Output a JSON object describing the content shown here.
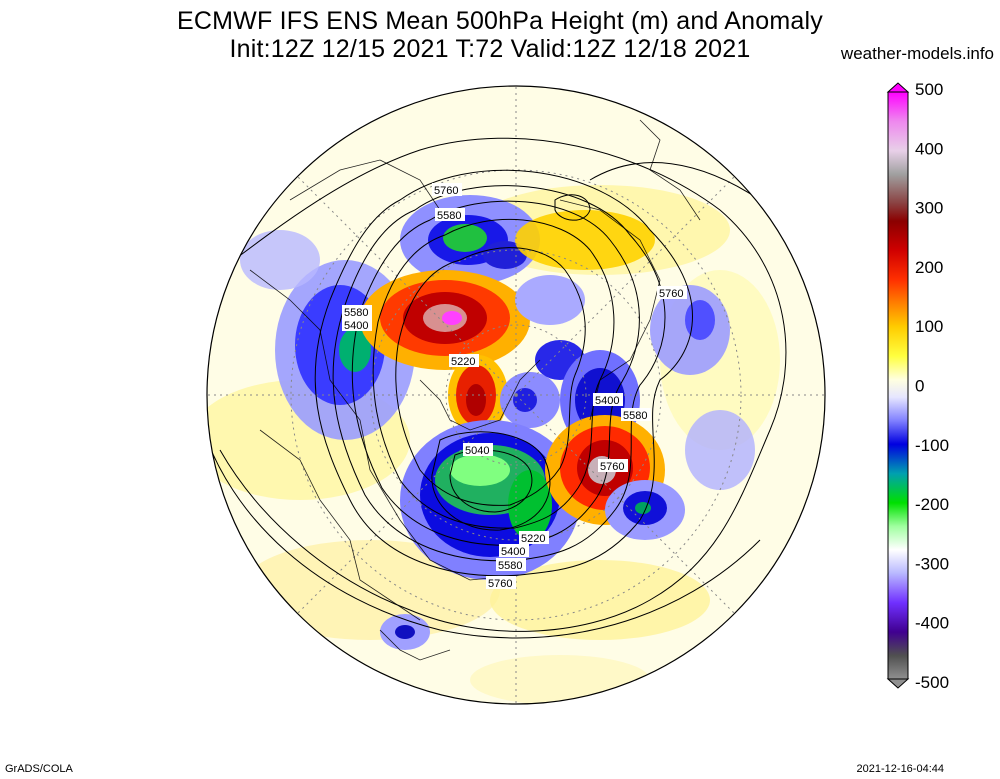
{
  "title": {
    "line1": "ECMWF IFS ENS Mean 500hPa Height (m) and Anomaly",
    "line2": "Init:12Z 12/15 2021  T:72 Valid:12Z 12/18 2021"
  },
  "source": "weather-models.info",
  "footer": {
    "left": "GrADS/COLA",
    "right": "2021-12-16-04:44"
  },
  "colorbar": {
    "labels": [
      "500",
      "400",
      "300",
      "200",
      "100",
      "0",
      "-100",
      "-200",
      "-300",
      "-400",
      "-500"
    ],
    "colors": [
      "#ff00ff",
      "#ee66ee",
      "#e6c8e6",
      "#b4b4b4",
      "#966464",
      "#8b0000",
      "#c80000",
      "#ff2000",
      "#ff7800",
      "#ffb400",
      "#ffff00",
      "#ffffc8",
      "#ffffff",
      "#c8c8ff",
      "#6464ff",
      "#0000e6",
      "#00b4a0",
      "#00e600",
      "#96ff96",
      "#ffffff",
      "#b4b4ff",
      "#6e00ff",
      "#3c0096",
      "#646464"
    ]
  },
  "contour_labels": {
    "l1": "5760",
    "l2": "5580",
    "l3": "5580",
    "l4": "5400",
    "l5": "5220",
    "l6": "5760",
    "l7": "5400",
    "l8": "5580",
    "l9": "5760",
    "l10": "5040",
    "l11": "5220",
    "l12": "5400",
    "l13": "5580",
    "l14": "5760"
  },
  "map": {
    "projection": "north polar stereographic",
    "field": "500hPa height contours with anomaly shading"
  }
}
